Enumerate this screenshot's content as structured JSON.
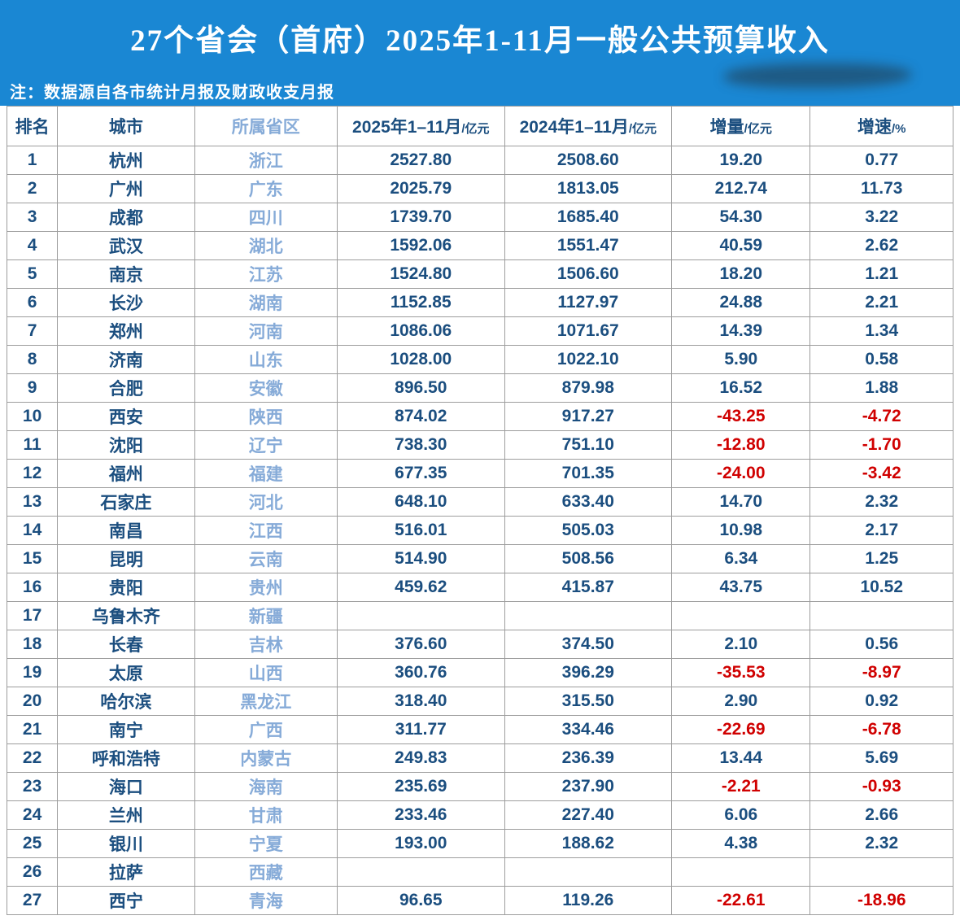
{
  "banner": {
    "title": "27个省会（首府）2025年1-11月一般公共预算收入"
  },
  "note": {
    "text": "注：数据源自各市统计月报及财政收支月报"
  },
  "colors": {
    "banner_blue": "#1a87d3",
    "dark_blue_text": "#1b4e7f",
    "light_blue_text": "#86abd8",
    "negative_red": "#d00000",
    "border_gray": "#9d9d9d"
  },
  "chart_data": {
    "type": "table",
    "title": "27个省会（首府）2025年1-11月一般公共预算收入",
    "source_note": "注：数据源自各市统计月报及财政收支月报",
    "columns": [
      {
        "label": "排名",
        "unit": ""
      },
      {
        "label": "城市",
        "unit": ""
      },
      {
        "label": "所属省区",
        "unit": ""
      },
      {
        "label": "2025年1–11月",
        "unit": "/亿元"
      },
      {
        "label": "2024年1–11月",
        "unit": "/亿元"
      },
      {
        "label": "增量",
        "unit": "/亿元"
      },
      {
        "label": "增速",
        "unit": "/%"
      }
    ],
    "rows": [
      [
        "1",
        "杭州",
        "浙江",
        "2527.80",
        "2508.60",
        "19.20",
        "0.77"
      ],
      [
        "2",
        "广州",
        "广东",
        "2025.79",
        "1813.05",
        "212.74",
        "11.73"
      ],
      [
        "3",
        "成都",
        "四川",
        "1739.70",
        "1685.40",
        "54.30",
        "3.22"
      ],
      [
        "4",
        "武汉",
        "湖北",
        "1592.06",
        "1551.47",
        "40.59",
        "2.62"
      ],
      [
        "5",
        "南京",
        "江苏",
        "1524.80",
        "1506.60",
        "18.20",
        "1.21"
      ],
      [
        "6",
        "长沙",
        "湖南",
        "1152.85",
        "1127.97",
        "24.88",
        "2.21"
      ],
      [
        "7",
        "郑州",
        "河南",
        "1086.06",
        "1071.67",
        "14.39",
        "1.34"
      ],
      [
        "8",
        "济南",
        "山东",
        "1028.00",
        "1022.10",
        "5.90",
        "0.58"
      ],
      [
        "9",
        "合肥",
        "安徽",
        "896.50",
        "879.98",
        "16.52",
        "1.88"
      ],
      [
        "10",
        "西安",
        "陕西",
        "874.02",
        "917.27",
        "-43.25",
        "-4.72"
      ],
      [
        "11",
        "沈阳",
        "辽宁",
        "738.30",
        "751.10",
        "-12.80",
        "-1.70"
      ],
      [
        "12",
        "福州",
        "福建",
        "677.35",
        "701.35",
        "-24.00",
        "-3.42"
      ],
      [
        "13",
        "石家庄",
        "河北",
        "648.10",
        "633.40",
        "14.70",
        "2.32"
      ],
      [
        "14",
        "南昌",
        "江西",
        "516.01",
        "505.03",
        "10.98",
        "2.17"
      ],
      [
        "15",
        "昆明",
        "云南",
        "514.90",
        "508.56",
        "6.34",
        "1.25"
      ],
      [
        "16",
        "贵阳",
        "贵州",
        "459.62",
        "415.87",
        "43.75",
        "10.52"
      ],
      [
        "17",
        "乌鲁木齐",
        "新疆",
        "",
        "",
        "",
        ""
      ],
      [
        "18",
        "长春",
        "吉林",
        "376.60",
        "374.50",
        "2.10",
        "0.56"
      ],
      [
        "19",
        "太原",
        "山西",
        "360.76",
        "396.29",
        "-35.53",
        "-8.97"
      ],
      [
        "20",
        "哈尔滨",
        "黑龙江",
        "318.40",
        "315.50",
        "2.90",
        "0.92"
      ],
      [
        "21",
        "南宁",
        "广西",
        "311.77",
        "334.46",
        "-22.69",
        "-6.78"
      ],
      [
        "22",
        "呼和浩特",
        "内蒙古",
        "249.83",
        "236.39",
        "13.44",
        "5.69"
      ],
      [
        "23",
        "海口",
        "海南",
        "235.69",
        "237.90",
        "-2.21",
        "-0.93"
      ],
      [
        "24",
        "兰州",
        "甘肃",
        "233.46",
        "227.40",
        "6.06",
        "2.66"
      ],
      [
        "25",
        "银川",
        "宁夏",
        "193.00",
        "188.62",
        "4.38",
        "2.32"
      ],
      [
        "26",
        "拉萨",
        "西藏",
        "",
        "",
        "",
        ""
      ],
      [
        "27",
        "西宁",
        "青海",
        "96.65",
        "119.26",
        "-22.61",
        "-18.96"
      ]
    ]
  }
}
